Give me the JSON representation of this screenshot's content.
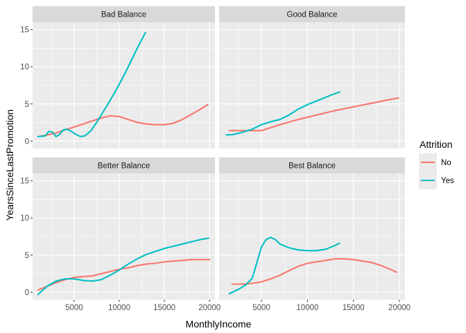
{
  "chart_data": {
    "type": "line",
    "xlabel": "MonthlyIncome",
    "ylabel": "YearsSinceLastPromotion",
    "xlim": [
      400,
      20600
    ],
    "ylim": [
      -1.0,
      16.0
    ],
    "x_ticks": [
      5000,
      10000,
      15000,
      20000
    ],
    "y_ticks": [
      0,
      5,
      10,
      15
    ],
    "grid": true,
    "legend": {
      "title": "Attrition",
      "placement": "right",
      "entries": [
        {
          "label": "No",
          "color": "#F8766D"
        },
        {
          "label": "Yes",
          "color": "#00BFC4"
        }
      ]
    },
    "facets": [
      {
        "title": "Bad Balance",
        "series": [
          {
            "name": "No",
            "color": "#F8766D",
            "points": [
              [
                1000,
                0.6
              ],
              [
                2000,
                0.8
              ],
              [
                3000,
                1.1
              ],
              [
                4000,
                1.5
              ],
              [
                5000,
                1.9
              ],
              [
                6000,
                2.3
              ],
              [
                7000,
                2.7
              ],
              [
                8000,
                3.1
              ],
              [
                9000,
                3.4
              ],
              [
                10000,
                3.3
              ],
              [
                11000,
                2.9
              ],
              [
                12000,
                2.5
              ],
              [
                13000,
                2.3
              ],
              [
                14000,
                2.2
              ],
              [
                15000,
                2.2
              ],
              [
                16000,
                2.4
              ],
              [
                17000,
                2.9
              ],
              [
                18000,
                3.6
              ],
              [
                19000,
                4.3
              ],
              [
                19800,
                4.9
              ]
            ]
          },
          {
            "name": "Yes",
            "color": "#00BFC4",
            "points": [
              [
                1000,
                0.6
              ],
              [
                1800,
                0.7
              ],
              [
                2200,
                1.3
              ],
              [
                2600,
                1.2
              ],
              [
                3000,
                0.6
              ],
              [
                3400,
                0.9
              ],
              [
                3800,
                1.5
              ],
              [
                4200,
                1.6
              ],
              [
                4700,
                1.3
              ],
              [
                5200,
                0.9
              ],
              [
                5700,
                0.6
              ],
              [
                6200,
                0.7
              ],
              [
                6800,
                1.3
              ],
              [
                7500,
                2.5
              ],
              [
                8200,
                3.9
              ],
              [
                9000,
                5.5
              ],
              [
                9800,
                7.2
              ],
              [
                10500,
                8.8
              ],
              [
                11200,
                10.5
              ],
              [
                12000,
                12.5
              ],
              [
                12900,
                14.6
              ]
            ]
          }
        ]
      },
      {
        "title": "Good Balance",
        "series": [
          {
            "name": "No",
            "color": "#F8766D",
            "points": [
              [
                1500,
                1.4
              ],
              [
                3000,
                1.4
              ],
              [
                5000,
                1.4
              ],
              [
                7000,
                2.2
              ],
              [
                9000,
                2.9
              ],
              [
                11000,
                3.5
              ],
              [
                13000,
                4.1
              ],
              [
                15000,
                4.6
              ],
              [
                17000,
                5.1
              ],
              [
                19000,
                5.6
              ],
              [
                19900,
                5.8
              ]
            ]
          },
          {
            "name": "Yes",
            "color": "#00BFC4",
            "points": [
              [
                1200,
                0.8
              ],
              [
                2000,
                0.9
              ],
              [
                3000,
                1.2
              ],
              [
                4000,
                1.6
              ],
              [
                5000,
                2.2
              ],
              [
                6000,
                2.6
              ],
              [
                7000,
                2.9
              ],
              [
                8000,
                3.5
              ],
              [
                9000,
                4.3
              ],
              [
                10000,
                4.9
              ],
              [
                11000,
                5.4
              ],
              [
                12000,
                5.9
              ],
              [
                13000,
                6.4
              ],
              [
                13500,
                6.6
              ]
            ]
          }
        ]
      },
      {
        "title": "Better Balance",
        "series": [
          {
            "name": "No",
            "color": "#F8766D",
            "points": [
              [
                1000,
                0.3
              ],
              [
                2000,
                0.8
              ],
              [
                3000,
                1.3
              ],
              [
                4000,
                1.7
              ],
              [
                5000,
                2.0
              ],
              [
                6000,
                2.1
              ],
              [
                7000,
                2.2
              ],
              [
                8000,
                2.5
              ],
              [
                9000,
                2.8
              ],
              [
                10000,
                3.1
              ],
              [
                11000,
                3.3
              ],
              [
                12000,
                3.6
              ],
              [
                13000,
                3.8
              ],
              [
                14000,
                3.9
              ],
              [
                15000,
                4.1
              ],
              [
                16000,
                4.2
              ],
              [
                17000,
                4.3
              ],
              [
                18000,
                4.4
              ],
              [
                19000,
                4.4
              ],
              [
                20000,
                4.4
              ]
            ]
          },
          {
            "name": "Yes",
            "color": "#00BFC4",
            "points": [
              [
                1000,
                -0.3
              ],
              [
                2000,
                0.8
              ],
              [
                3000,
                1.5
              ],
              [
                4000,
                1.8
              ],
              [
                5000,
                1.8
              ],
              [
                6000,
                1.6
              ],
              [
                7000,
                1.5
              ],
              [
                8000,
                1.7
              ],
              [
                9000,
                2.3
              ],
              [
                10000,
                3.0
              ],
              [
                11000,
                3.8
              ],
              [
                12000,
                4.5
              ],
              [
                13000,
                5.1
              ],
              [
                14000,
                5.5
              ],
              [
                15000,
                5.9
              ],
              [
                16000,
                6.2
              ],
              [
                17000,
                6.5
              ],
              [
                18000,
                6.8
              ],
              [
                19000,
                7.1
              ],
              [
                19900,
                7.3
              ]
            ]
          }
        ]
      },
      {
        "title": "Best Balance",
        "series": [
          {
            "name": "No",
            "color": "#F8766D",
            "points": [
              [
                1800,
                1.1
              ],
              [
                3000,
                1.1
              ],
              [
                4000,
                1.2
              ],
              [
                5000,
                1.4
              ],
              [
                6000,
                1.8
              ],
              [
                7000,
                2.3
              ],
              [
                8000,
                2.9
              ],
              [
                9000,
                3.5
              ],
              [
                10000,
                3.9
              ],
              [
                11000,
                4.1
              ],
              [
                12000,
                4.3
              ],
              [
                13000,
                4.5
              ],
              [
                14000,
                4.5
              ],
              [
                15000,
                4.4
              ],
              [
                16000,
                4.2
              ],
              [
                17000,
                4.0
              ],
              [
                18000,
                3.6
              ],
              [
                19000,
                3.1
              ],
              [
                19700,
                2.7
              ]
            ]
          },
          {
            "name": "Yes",
            "color": "#00BFC4",
            "points": [
              [
                1500,
                -0.2
              ],
              [
                2500,
                0.4
              ],
              [
                3300,
                1.0
              ],
              [
                4000,
                1.9
              ],
              [
                4500,
                4.0
              ],
              [
                5000,
                6.1
              ],
              [
                5500,
                7.1
              ],
              [
                6000,
                7.4
              ],
              [
                6500,
                7.1
              ],
              [
                7000,
                6.5
              ],
              [
                8000,
                6.0
              ],
              [
                9000,
                5.7
              ],
              [
                10000,
                5.6
              ],
              [
                11000,
                5.6
              ],
              [
                12000,
                5.8
              ],
              [
                13000,
                6.3
              ],
              [
                13500,
                6.6
              ]
            ]
          }
        ]
      }
    ]
  }
}
